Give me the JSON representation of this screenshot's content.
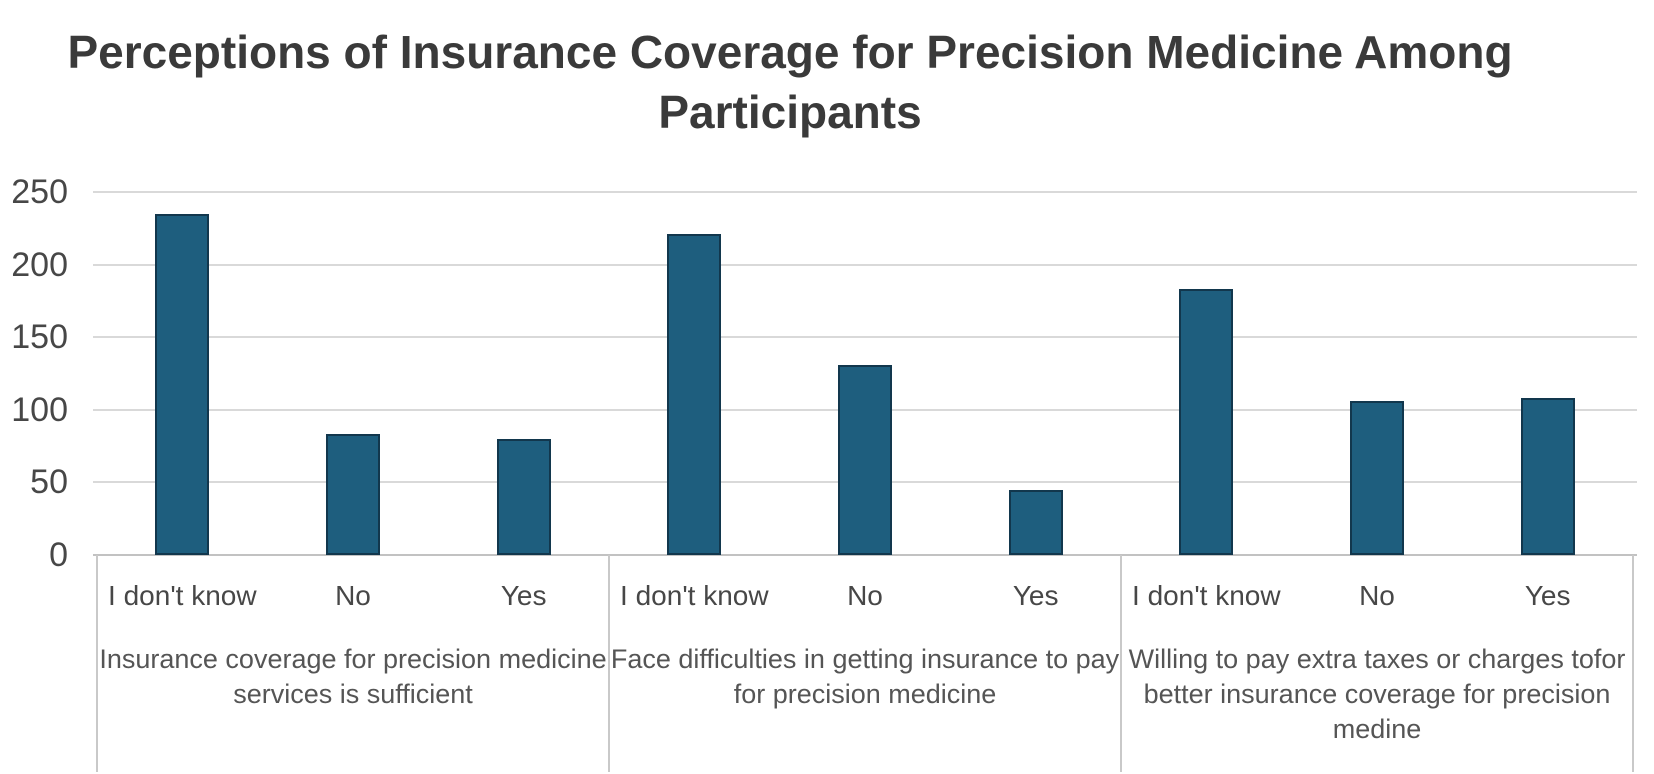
{
  "chart_data": {
    "type": "bar",
    "title": "Perceptions of Insurance Coverage for Precision Medicine Among Participants",
    "xlabel": "",
    "ylabel": "",
    "ylim": [
      0,
      250
    ],
    "yticks": [
      0,
      50,
      100,
      150,
      200,
      250
    ],
    "grid": true,
    "legend": "none",
    "bar_color": "#1E5E7E",
    "bar_edge_color": "#12374d",
    "groups": [
      {
        "label": "Insurance coverage for precision medicine services is sufficient",
        "categories": [
          "I don't know",
          "No",
          "Yes"
        ],
        "values": [
          235,
          83,
          80
        ]
      },
      {
        "label": "Face difficulties in getting insurance to pay for precision medicine",
        "categories": [
          "I don't know",
          "No",
          "Yes"
        ],
        "values": [
          221,
          131,
          45
        ]
      },
      {
        "label": "Willing to pay extra taxes or charges tofor better insurance coverage for precision  medine",
        "categories": [
          "I don't know",
          "No",
          "Yes"
        ],
        "values": [
          183,
          106,
          108
        ]
      }
    ]
  }
}
